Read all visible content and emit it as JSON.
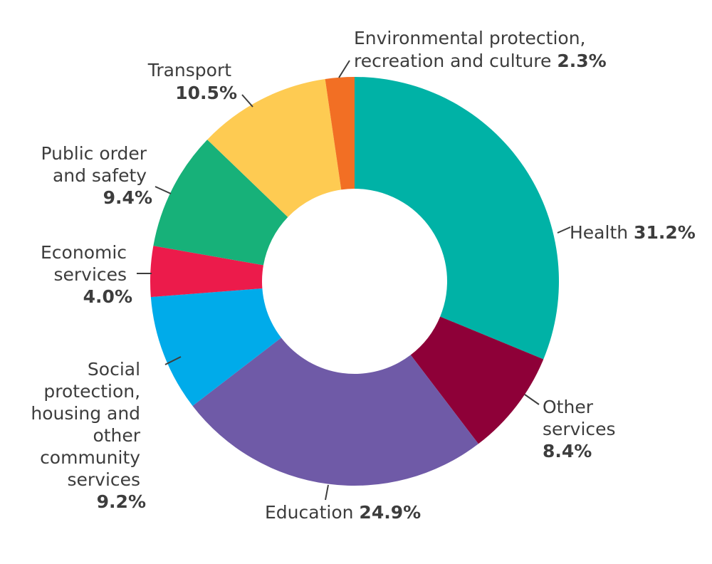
{
  "chart_data": {
    "type": "pie",
    "variant": "donut",
    "legend": "none",
    "slices": [
      {
        "name": "Health",
        "value": 31.2,
        "value_label": "31.2%",
        "color": "#00b2a6"
      },
      {
        "name": "Other services",
        "value": 8.4,
        "value_label": "8.4%",
        "color": "#8e0038"
      },
      {
        "name": "Education",
        "value": 24.9,
        "value_label": "24.9%",
        "color": "#6f5aa7"
      },
      {
        "name": "Social protection, housing and other community services",
        "value": 9.2,
        "value_label": "9.2%",
        "color": "#00abea"
      },
      {
        "name": "Economic services",
        "value": 4.0,
        "value_label": "4.0%",
        "color": "#ec1b4b"
      },
      {
        "name": "Public order and safety",
        "value": 9.4,
        "value_label": "9.4%",
        "color": "#17b179"
      },
      {
        "name": "Transport",
        "value": 10.5,
        "value_label": "10.5%",
        "color": "#fecb52"
      },
      {
        "name": "Environmental protection, recreation and culture",
        "value": 2.3,
        "value_label": "2.3%",
        "color": "#f26f24"
      }
    ]
  }
}
